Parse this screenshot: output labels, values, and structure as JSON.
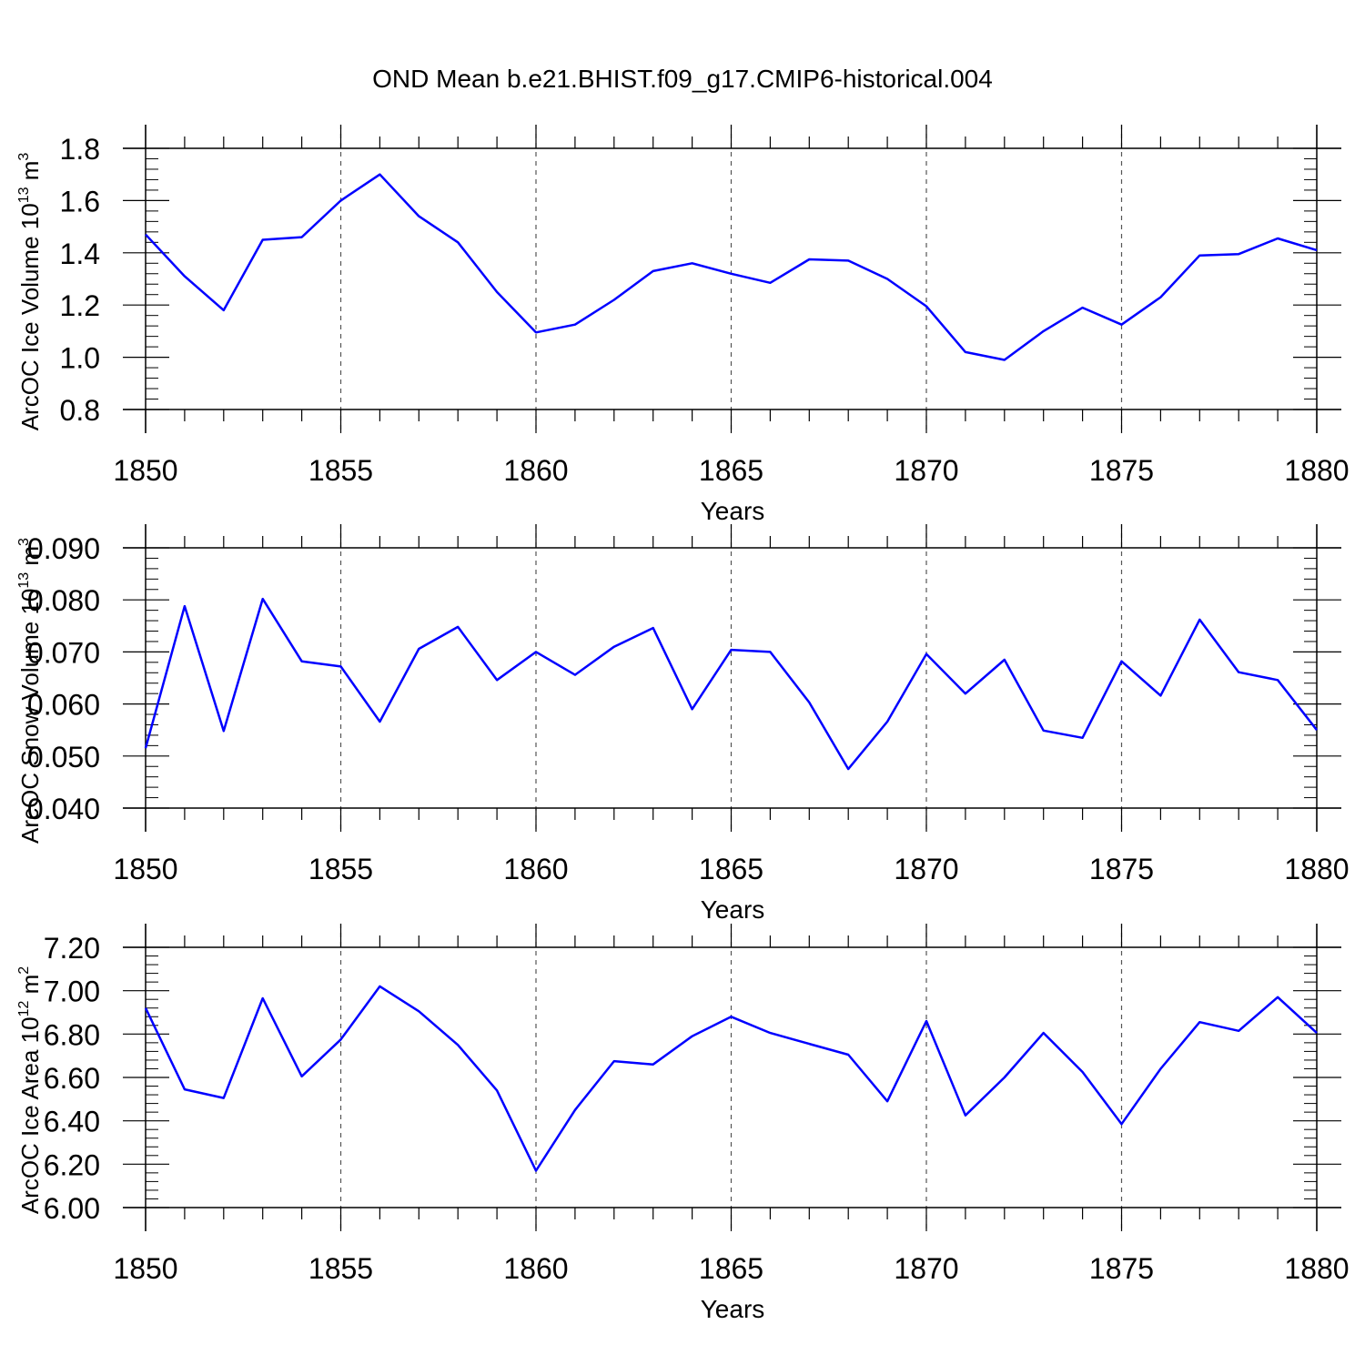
{
  "title": "OND Mean b.e21.BHIST.f09_g17.CMIP6-historical.004",
  "colors": {
    "line": "#0000ff",
    "axis": "#000000",
    "grid": "#555555",
    "background": "#ffffff"
  },
  "chart_data": [
    {
      "type": "line",
      "ylabel_main": "ArcOC Ice Volume 10",
      "ylabel_exp": "13",
      "ylabel_unit": " m",
      "ylabel_unit_exp": "3",
      "xlabel": "Years",
      "xlim": [
        1850,
        1880
      ],
      "ylim": [
        0.8,
        1.8
      ],
      "xticks": [
        "1850",
        "1855",
        "1860",
        "1865",
        "1870",
        "1875",
        "1880"
      ],
      "yticks": [
        "0.8",
        "1.0",
        "1.2",
        "1.4",
        "1.6",
        "1.8"
      ],
      "grid": "vertical dashed at major x ticks",
      "x": [
        1850,
        1851,
        1852,
        1853,
        1854,
        1855,
        1856,
        1857,
        1858,
        1859,
        1860,
        1861,
        1862,
        1863,
        1864,
        1865,
        1866,
        1867,
        1868,
        1869,
        1870,
        1871,
        1872,
        1873,
        1874,
        1875,
        1876,
        1877,
        1878,
        1879,
        1880
      ],
      "values": [
        1.47,
        1.31,
        1.18,
        1.45,
        1.46,
        1.6,
        1.7,
        1.54,
        1.44,
        1.25,
        1.095,
        1.125,
        1.22,
        1.33,
        1.36,
        1.32,
        1.285,
        1.375,
        1.37,
        1.3,
        1.195,
        1.02,
        0.99,
        1.1,
        1.19,
        1.125,
        1.23,
        1.39,
        1.395,
        1.455,
        1.41
      ]
    },
    {
      "type": "line",
      "ylabel_main": "ArcOC Snow Volume 10",
      "ylabel_exp": "13",
      "ylabel_unit": " m",
      "ylabel_unit_exp": "3",
      "xlabel": "Years",
      "xlim": [
        1850,
        1880
      ],
      "ylim": [
        0.04,
        0.09
      ],
      "xticks": [
        "1850",
        "1855",
        "1860",
        "1865",
        "1870",
        "1875",
        "1880"
      ],
      "yticks": [
        "0.040",
        "0.050",
        "0.060",
        "0.070",
        "0.080",
        "0.090"
      ],
      "grid": "vertical dashed at major x ticks",
      "x": [
        1850,
        1851,
        1852,
        1853,
        1854,
        1855,
        1856,
        1857,
        1858,
        1859,
        1860,
        1861,
        1862,
        1863,
        1864,
        1865,
        1866,
        1867,
        1868,
        1869,
        1870,
        1871,
        1872,
        1873,
        1874,
        1875,
        1876,
        1877,
        1878,
        1879,
        1880
      ],
      "values": [
        0.0515,
        0.0788,
        0.0548,
        0.0802,
        0.0682,
        0.0672,
        0.0566,
        0.0706,
        0.0748,
        0.0646,
        0.07,
        0.0656,
        0.071,
        0.0746,
        0.059,
        0.0704,
        0.07,
        0.0603,
        0.0475,
        0.0566,
        0.0696,
        0.062,
        0.0685,
        0.0549,
        0.0535,
        0.0682,
        0.0616,
        0.0762,
        0.0661,
        0.0646,
        0.055
      ]
    },
    {
      "type": "line",
      "ylabel_main": "ArcOC Ice Area 10",
      "ylabel_exp": "12",
      "ylabel_unit": " m",
      "ylabel_unit_exp": "2",
      "xlabel": "Years",
      "xlim": [
        1850,
        1880
      ],
      "ylim": [
        6.0,
        7.2
      ],
      "xticks": [
        "1850",
        "1855",
        "1860",
        "1865",
        "1870",
        "1875",
        "1880"
      ],
      "yticks": [
        "6.00",
        "6.20",
        "6.40",
        "6.60",
        "6.80",
        "7.00",
        "7.20"
      ],
      "grid": "vertical dashed at major x ticks",
      "x": [
        1850,
        1851,
        1852,
        1853,
        1854,
        1855,
        1856,
        1857,
        1858,
        1859,
        1860,
        1861,
        1862,
        1863,
        1864,
        1865,
        1866,
        1867,
        1868,
        1869,
        1870,
        1871,
        1872,
        1873,
        1874,
        1875,
        1876,
        1877,
        1878,
        1879,
        1880
      ],
      "values": [
        6.92,
        6.545,
        6.505,
        6.965,
        6.605,
        6.775,
        7.02,
        6.905,
        6.75,
        6.54,
        6.17,
        6.45,
        6.675,
        6.66,
        6.79,
        6.88,
        6.805,
        6.755,
        6.705,
        6.49,
        6.86,
        6.425,
        6.6,
        6.805,
        6.625,
        6.385,
        6.64,
        6.855,
        6.815,
        6.97,
        6.805
      ]
    }
  ]
}
